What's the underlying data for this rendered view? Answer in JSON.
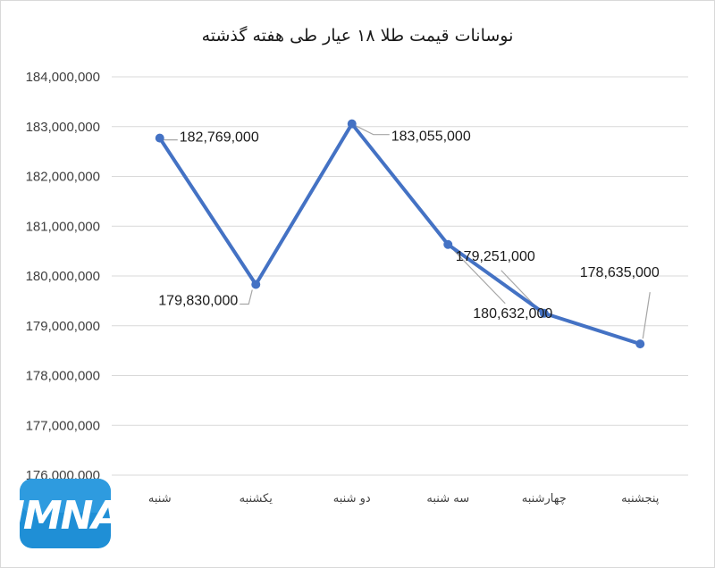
{
  "chart_data": {
    "type": "line",
    "title": "نوسانات قیمت طلا ۱۸ عیار طی هفته گذشته",
    "xlabel": "",
    "ylabel": "",
    "categories": [
      "شنبه",
      "یکشنبه",
      "دو شنبه",
      "سه شنبه",
      "چهارشنبه",
      "پنجشنبه"
    ],
    "series": [
      {
        "values": [
          182769000,
          179830000,
          183055000,
          180632000,
          179251000,
          178635000
        ],
        "labels": [
          "182,769,000",
          "179,830,000",
          "183,055,000",
          "180,632,000",
          "179,251,000",
          "178,635,000"
        ]
      }
    ],
    "ylim": [
      176000000,
      184000000
    ],
    "yticks": [
      176000000,
      177000000,
      178000000,
      179000000,
      180000000,
      181000000,
      182000000,
      183000000,
      184000000
    ],
    "ytick_labels": [
      "176,000,000",
      "177,000,000",
      "178,000,000",
      "179,000,000",
      "180,000,000",
      "181,000,000",
      "182,000,000",
      "183,000,000",
      "184,000,000"
    ],
    "grid": true,
    "legend": "none",
    "line_color": "#4472c4"
  },
  "watermark": {
    "text": "IMNA",
    "background": "#1f8fd6"
  }
}
